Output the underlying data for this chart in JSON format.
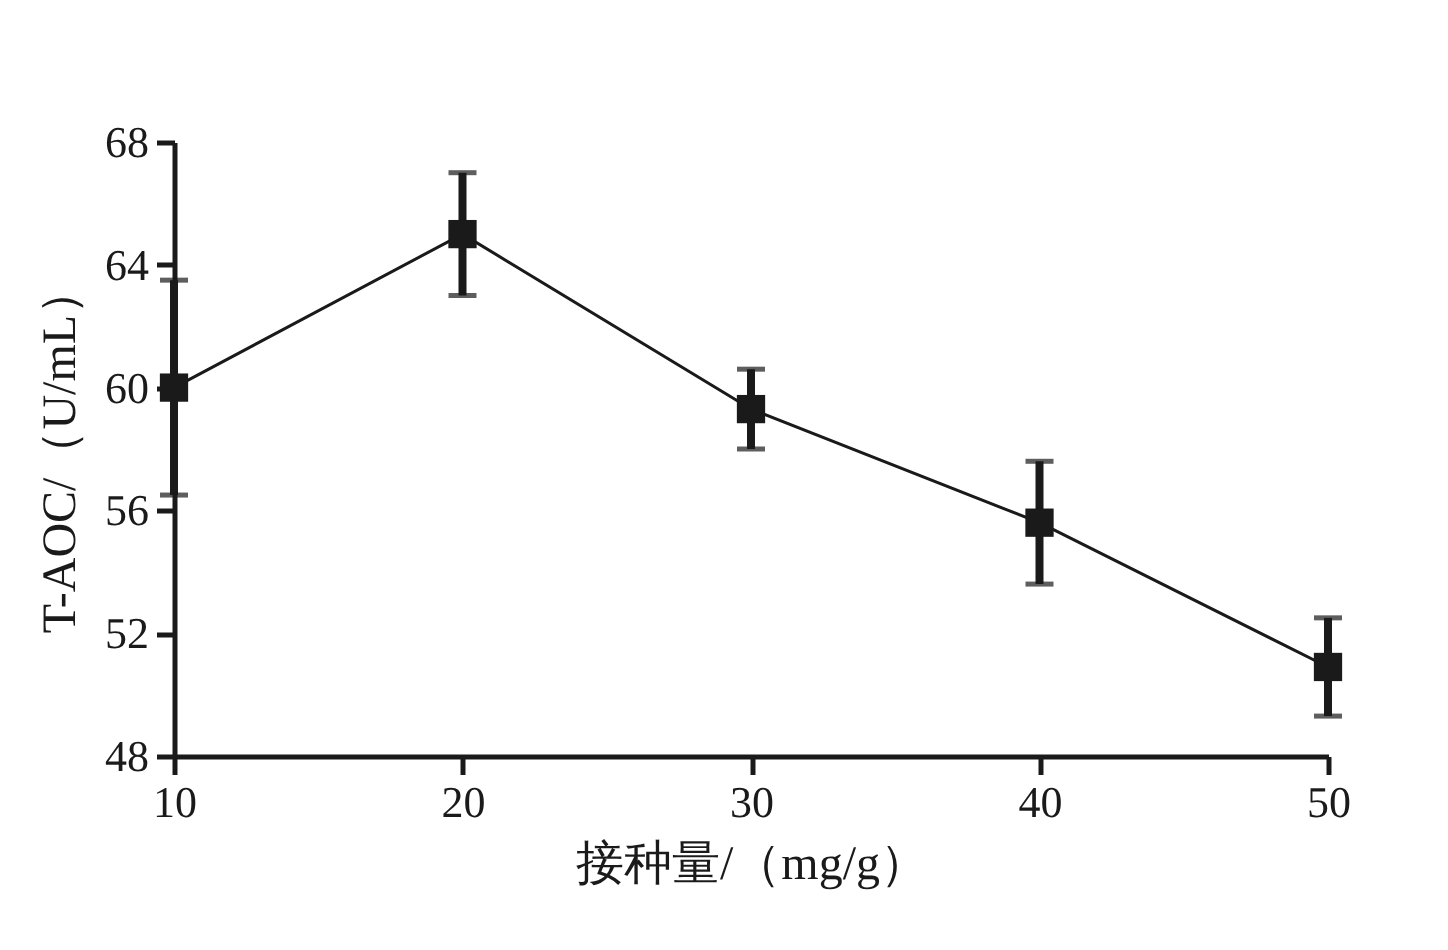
{
  "chart_data": {
    "type": "line",
    "xlabel": "接种量/（mg/g）",
    "ylabel": "T-AOC/（U/mL）",
    "x": [
      10,
      20,
      30,
      40,
      50
    ],
    "series": [
      {
        "color": "#1a1a1a",
        "values": [
          60.0,
          65.0,
          59.3,
          55.6,
          50.9
        ],
        "errors": [
          3.5,
          2.0,
          1.3,
          2.0,
          1.6
        ]
      }
    ],
    "xlim": [
      10,
      50
    ],
    "xticks": [
      10,
      20,
      30,
      40,
      50
    ],
    "ylim": [
      48,
      68
    ],
    "yticks": [
      48,
      52,
      56,
      60,
      64,
      68
    ],
    "grid": false,
    "legend": false,
    "marker": "square",
    "line_style": "solid"
  }
}
